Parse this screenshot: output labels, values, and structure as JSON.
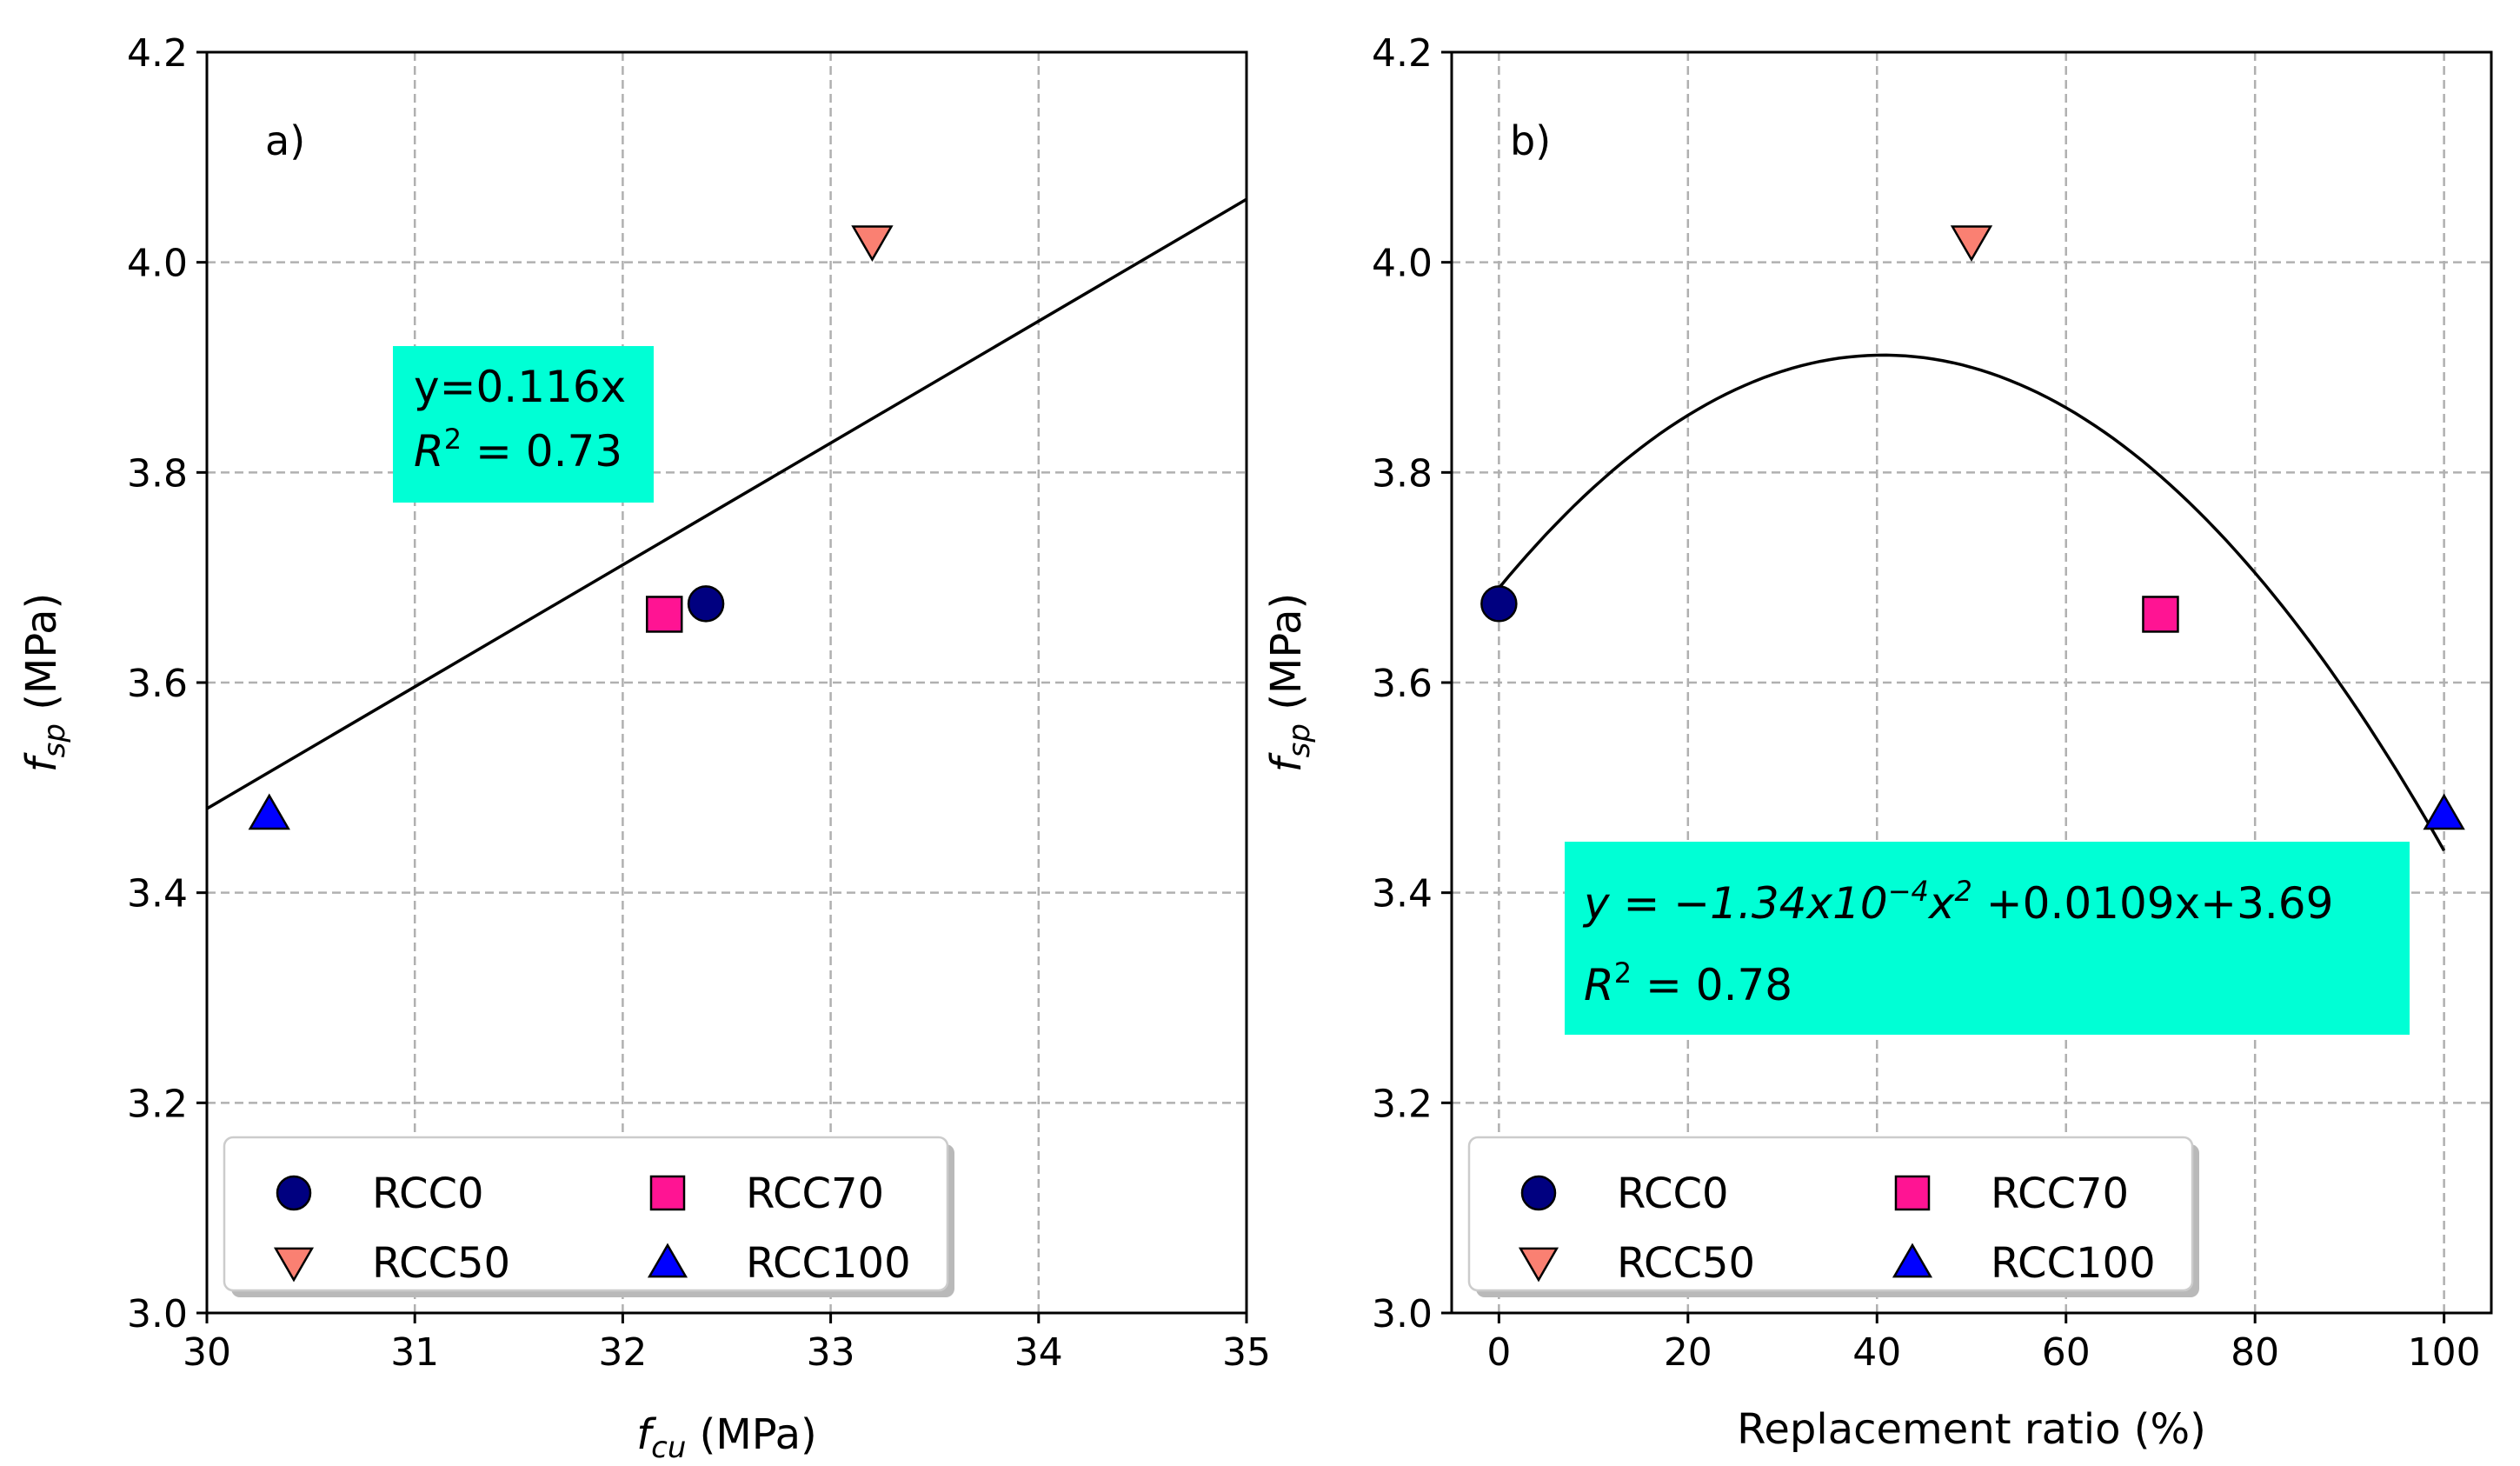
{
  "colors": {
    "RCC0": "#000080",
    "RCC50": "#fa8072",
    "RCC70": "#ff1493",
    "RCC100": "#0000ff",
    "eq_box": "#00ffd5",
    "fit_line": "#000000"
  },
  "chart_data": [
    {
      "type": "scatter",
      "panel_label": "a)",
      "xlabel_main": "f",
      "xlabel_sub": "cu",
      "xlabel_unit": " (MPa)",
      "ylabel_main": "f",
      "ylabel_sub": "sp",
      "ylabel_unit": " (MPa)",
      "xlim": [
        30,
        35
      ],
      "ylim": [
        3.0,
        4.2
      ],
      "xticks": [
        "30",
        "31",
        "32",
        "33",
        "34",
        "35"
      ],
      "xtick_values": [
        30,
        31,
        32,
        33,
        34,
        35
      ],
      "yticks": [
        "3.0",
        "3.2",
        "3.4",
        "3.6",
        "3.8",
        "4.0",
        "4.2"
      ],
      "ytick_values": [
        3.0,
        3.2,
        3.4,
        3.6,
        3.8,
        4.0,
        4.2
      ],
      "series": [
        {
          "name": "RCC0",
          "marker": "circle",
          "x": 32.4,
          "y": 3.675
        },
        {
          "name": "RCC50",
          "marker": "triangle-down",
          "x": 33.2,
          "y": 4.02
        },
        {
          "name": "RCC70",
          "marker": "square",
          "x": 32.2,
          "y": 3.665
        },
        {
          "name": "RCC100",
          "marker": "triangle-up",
          "x": 30.3,
          "y": 3.475
        }
      ],
      "fit": {
        "kind": "proportional",
        "slope": 0.116
      },
      "equation": {
        "line1": "y=0.116x",
        "r2_label": "R",
        "r2_sup": "2",
        "r2_value": " = 0.73"
      },
      "legend": {
        "location": "lower-left",
        "columns": 2,
        "order": [
          "RCC0",
          "RCC70",
          "RCC50",
          "RCC100"
        ]
      }
    },
    {
      "type": "scatter",
      "panel_label": "b)",
      "xlabel": "Replacement ratio (%)",
      "ylabel_main": "f",
      "ylabel_sub": "sp",
      "ylabel_unit": " (MPa)",
      "xlim": [
        -5,
        105
      ],
      "ylim": [
        3.0,
        4.2
      ],
      "xticks": [
        "0",
        "20",
        "40",
        "60",
        "80",
        "100"
      ],
      "xtick_values": [
        0,
        20,
        40,
        60,
        80,
        100
      ],
      "yticks": [
        "3.0",
        "3.2",
        "3.4",
        "3.6",
        "3.8",
        "4.0",
        "4.2"
      ],
      "ytick_values": [
        3.0,
        3.2,
        3.4,
        3.6,
        3.8,
        4.0,
        4.2
      ],
      "series": [
        {
          "name": "RCC0",
          "marker": "circle",
          "x": 0,
          "y": 3.675
        },
        {
          "name": "RCC50",
          "marker": "triangle-down",
          "x": 50,
          "y": 4.02
        },
        {
          "name": "RCC70",
          "marker": "square",
          "x": 70,
          "y": 3.665
        },
        {
          "name": "RCC100",
          "marker": "triangle-up",
          "x": 100,
          "y": 3.475
        }
      ],
      "fit": {
        "kind": "quadratic",
        "a": -0.000134,
        "b": 0.0109,
        "c": 3.69,
        "x_range": [
          0,
          100
        ]
      },
      "equation": {
        "line1_math": "y = −1.34x10",
        "line1_sup": "−4",
        "line1_x": "x",
        "line1_sup2": "2",
        "line1_tail": " +0.0109x+3.69",
        "r2_label": "R",
        "r2_sup": "2",
        "r2_value": " = 0.78"
      },
      "legend": {
        "location": "lower-left",
        "columns": 2,
        "order": [
          "RCC0",
          "RCC70",
          "RCC50",
          "RCC100"
        ]
      }
    }
  ]
}
